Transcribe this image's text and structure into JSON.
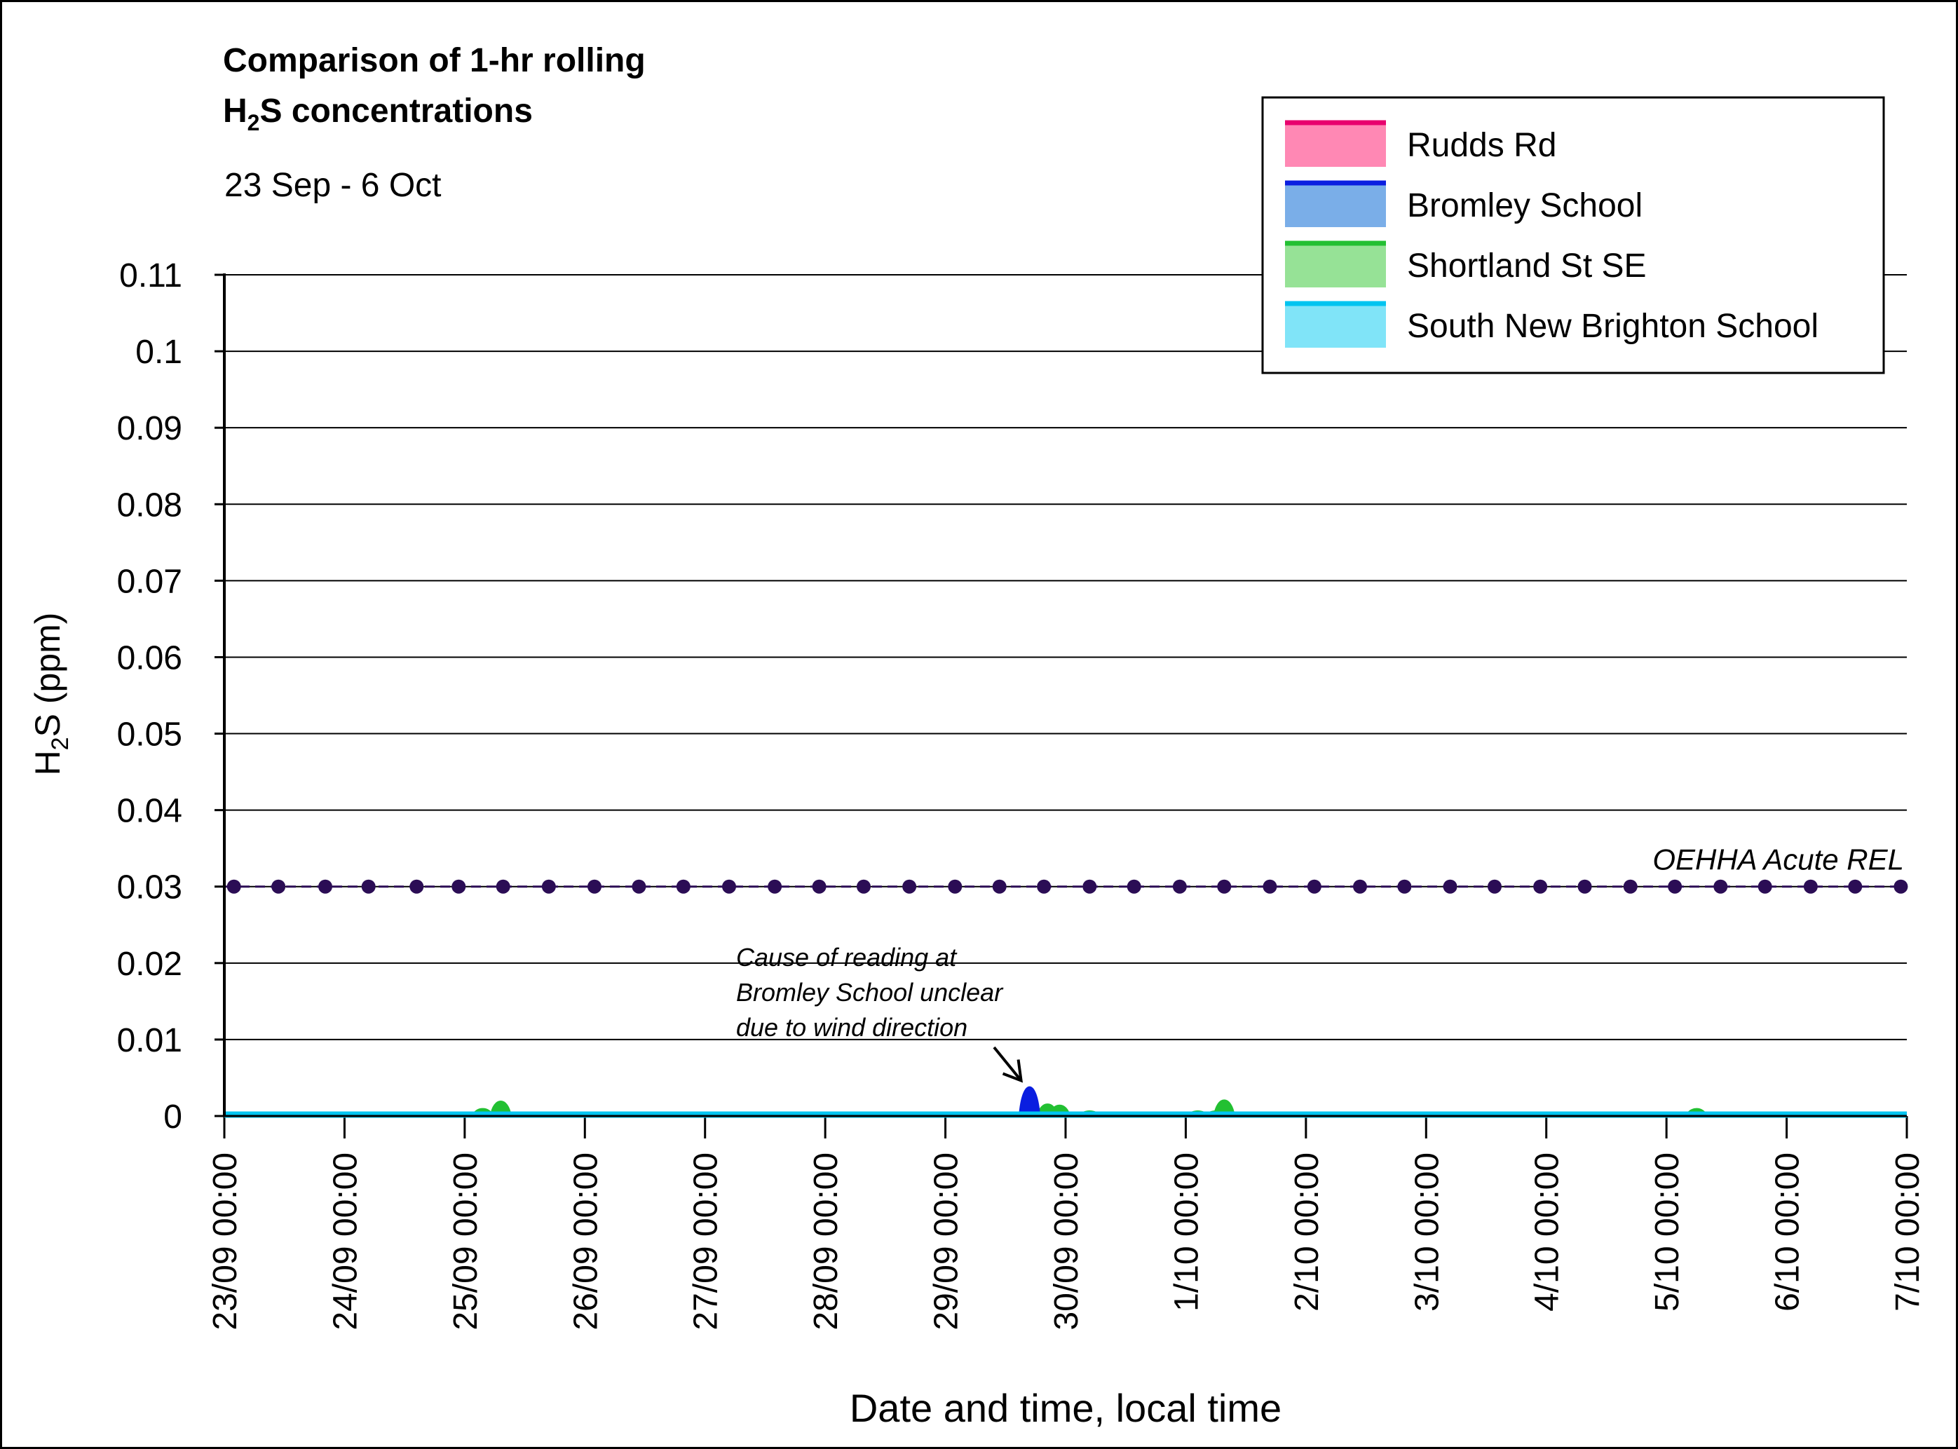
{
  "chart_data": {
    "type": "area",
    "title_line1": "Comparison of 1-hr rolling",
    "title_line2_main": "H",
    "title_line2_sub": "2",
    "title_line2_rest": "S concentrations",
    "subtitle": "23 Sep - 6 Oct",
    "ylabel_main": "H",
    "ylabel_sub": "2",
    "ylabel_rest": "S (ppm)",
    "xlabel": "Date and time, local time",
    "ylim": [
      0,
      0.11
    ],
    "xlim": [
      0,
      14
    ],
    "grid": true,
    "legend_position": "top-right",
    "yticks": [
      0,
      0.01,
      0.02,
      0.03,
      0.04,
      0.05,
      0.06,
      0.07,
      0.08,
      0.09,
      0.1,
      0.11
    ],
    "ytick_labels": [
      "0",
      "0.01",
      "0.02",
      "0.03",
      "0.04",
      "0.05",
      "0.06",
      "0.07",
      "0.08",
      "0.09",
      "0.1",
      "0.11"
    ],
    "xtick_labels": [
      "23/09 00:00",
      "24/09 00:00",
      "25/09 00:00",
      "26/09 00:00",
      "27/09 00:00",
      "28/09 00:00",
      "29/09 00:00",
      "30/09 00:00",
      "1/10 00:00",
      "2/10 00:00",
      "3/10 00:00",
      "4/10 00:00",
      "5/10 00:00",
      "6/10 00:00",
      "7/10 00:00"
    ],
    "series": [
      {
        "name": "Rudds Rd",
        "line_color": "#e8006e",
        "fill_color": "#ff88b4",
        "peaks": [
          [
            11.6,
            0.0006
          ]
        ]
      },
      {
        "name": "Bromley School",
        "line_color": "#0a1ee0",
        "fill_color": "#7aaee8",
        "peaks": [
          [
            6.7,
            0.005
          ]
        ]
      },
      {
        "name": "Shortland St SE",
        "line_color": "#22c032",
        "fill_color": "#96e296",
        "peaks": [
          [
            1.6,
            0.0006
          ],
          [
            2.15,
            0.0012
          ],
          [
            2.3,
            0.0025
          ],
          [
            5.0,
            0.0006
          ],
          [
            6.85,
            0.002
          ],
          [
            6.95,
            0.0018
          ],
          [
            7.2,
            0.0008
          ],
          [
            8.1,
            0.0008
          ],
          [
            8.25,
            0.0008
          ],
          [
            8.32,
            0.0027
          ],
          [
            12.25,
            0.0012
          ]
        ]
      },
      {
        "name": "South New Brighton School",
        "line_color": "#00c4f0",
        "fill_color": "#80e4f8",
        "peaks": []
      }
    ],
    "reference_line": {
      "label": "OEHHA Acute REL",
      "value": 0.03,
      "color": "#2b0d55",
      "marker_x": [
        0.08,
        0.45,
        0.84,
        1.2,
        1.6,
        1.95,
        2.32,
        2.7,
        3.08,
        3.45,
        3.82,
        4.2,
        4.58,
        4.95,
        5.32,
        5.7,
        6.08,
        6.45,
        6.82,
        7.2,
        7.57,
        7.95,
        8.32,
        8.7,
        9.07,
        9.45,
        9.82,
        10.2,
        10.57,
        10.95,
        11.32,
        11.7,
        12.07,
        12.45,
        12.82,
        13.2,
        13.57,
        13.95
      ]
    },
    "annotation": {
      "lines": [
        "Cause of reading at",
        "Bromley School unclear",
        "due to wind direction"
      ],
      "target_x": 6.7,
      "target_y": 0.005
    }
  }
}
